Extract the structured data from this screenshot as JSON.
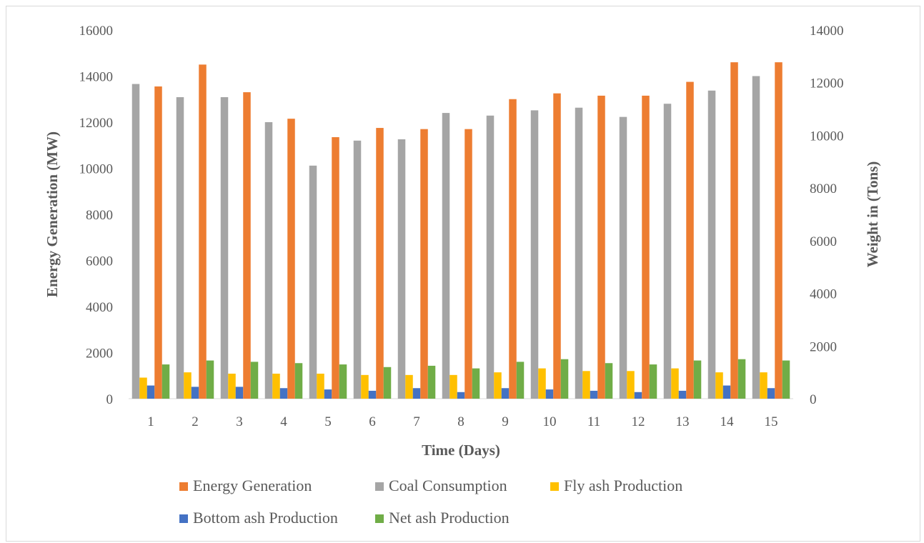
{
  "chart_data": {
    "type": "bar",
    "title": "",
    "xlabel": "Time (Days)",
    "ylabel": "Energy Generation (MW)",
    "y2label": "Weight in (Tons)",
    "categories": [
      "1",
      "2",
      "3",
      "4",
      "5",
      "6",
      "7",
      "8",
      "9",
      "10",
      "11",
      "12",
      "13",
      "14",
      "15"
    ],
    "ylim": [
      0,
      16000
    ],
    "y2lim": [
      0,
      14000
    ],
    "yticks": [
      "0",
      "2000",
      "4000",
      "6000",
      "8000",
      "10000",
      "12000",
      "14000",
      "16000"
    ],
    "y2ticks": [
      "0",
      "2000",
      "4000",
      "6000",
      "8000",
      "10000",
      "12000",
      "14000"
    ],
    "grid": false,
    "legend_position": "bottom",
    "series": [
      {
        "name": "Energy Generation",
        "axis": "left",
        "color": "#ED7D31",
        "values": [
          13550,
          14500,
          13300,
          12150,
          11350,
          11750,
          11700,
          11700,
          13000,
          13250,
          13150,
          13150,
          13750,
          14600,
          14600
        ]
      },
      {
        "name": "Coal Consumption",
        "axis": "right",
        "color": "#A5A5A5",
        "values": [
          11950,
          11450,
          11450,
          10500,
          8850,
          9800,
          9850,
          10850,
          10750,
          10950,
          11050,
          10700,
          11200,
          11700,
          12250
        ]
      },
      {
        "name": "Fly ash Production",
        "axis": "right",
        "color": "#FFC000",
        "values": [
          800,
          1000,
          950,
          950,
          950,
          900,
          900,
          900,
          1000,
          1150,
          1050,
          1050,
          1150,
          1000,
          1000
        ]
      },
      {
        "name": "Bottom ash Production",
        "axis": "right",
        "color": "#4472C4",
        "values": [
          500,
          450,
          450,
          400,
          350,
          300,
          400,
          250,
          400,
          350,
          300,
          250,
          300,
          500,
          400
        ]
      },
      {
        "name": "Net ash Production",
        "axis": "right",
        "color": "#70AD47",
        "values": [
          1300,
          1450,
          1400,
          1350,
          1300,
          1200,
          1250,
          1150,
          1400,
          1500,
          1350,
          1300,
          1450,
          1500,
          1450
        ]
      }
    ],
    "legend_rows": [
      [
        "Energy Generation",
        "Coal Consumption",
        "Fly ash Production"
      ],
      [
        "Bottom ash Production",
        "Net ash Production"
      ]
    ]
  }
}
